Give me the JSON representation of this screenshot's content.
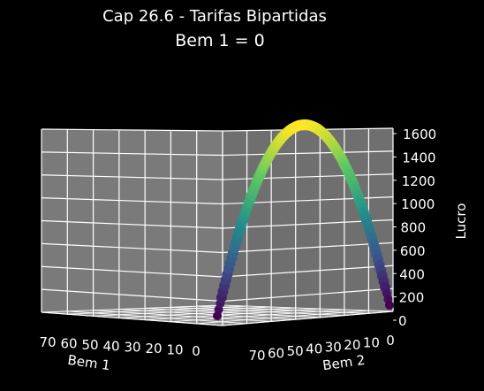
{
  "chart_data": {
    "type": "scatter",
    "projection": "3d",
    "title": "Cap 26.6 - Tarifas Bipartidas",
    "subtitle": "Bem 1 = 0",
    "xlabel": "Bem 1",
    "ylabel": "Bem 2",
    "zlabel": "Lucro",
    "x_ticks": [
      "70",
      "60",
      "50",
      "40",
      "30",
      "20",
      "10",
      "0"
    ],
    "y_ticks": [
      "70",
      "60",
      "50",
      "40",
      "30",
      "20",
      "10",
      "0"
    ],
    "z_ticks": [
      "0",
      "200",
      "400",
      "600",
      "800",
      "1000",
      "1200",
      "1400",
      "1600"
    ],
    "xlim": [
      0,
      70
    ],
    "ylim": [
      0,
      70
    ],
    "zlim": [
      0,
      1600
    ],
    "grid": true,
    "colormap": "viridis",
    "bem1_value": 0,
    "bem2_range": [
      0,
      80
    ],
    "series": [
      {
        "x_start": 0,
        "x_end": 0,
        "y_start": 0,
        "y_end": 80,
        "profit_peak_at_bem2": 40,
        "profit_peak_value": 1600
      }
    ]
  },
  "colors": {
    "background": "#000000",
    "pane": "#7a7a7a",
    "grid": "#ffffff",
    "text": "#ffffff"
  }
}
